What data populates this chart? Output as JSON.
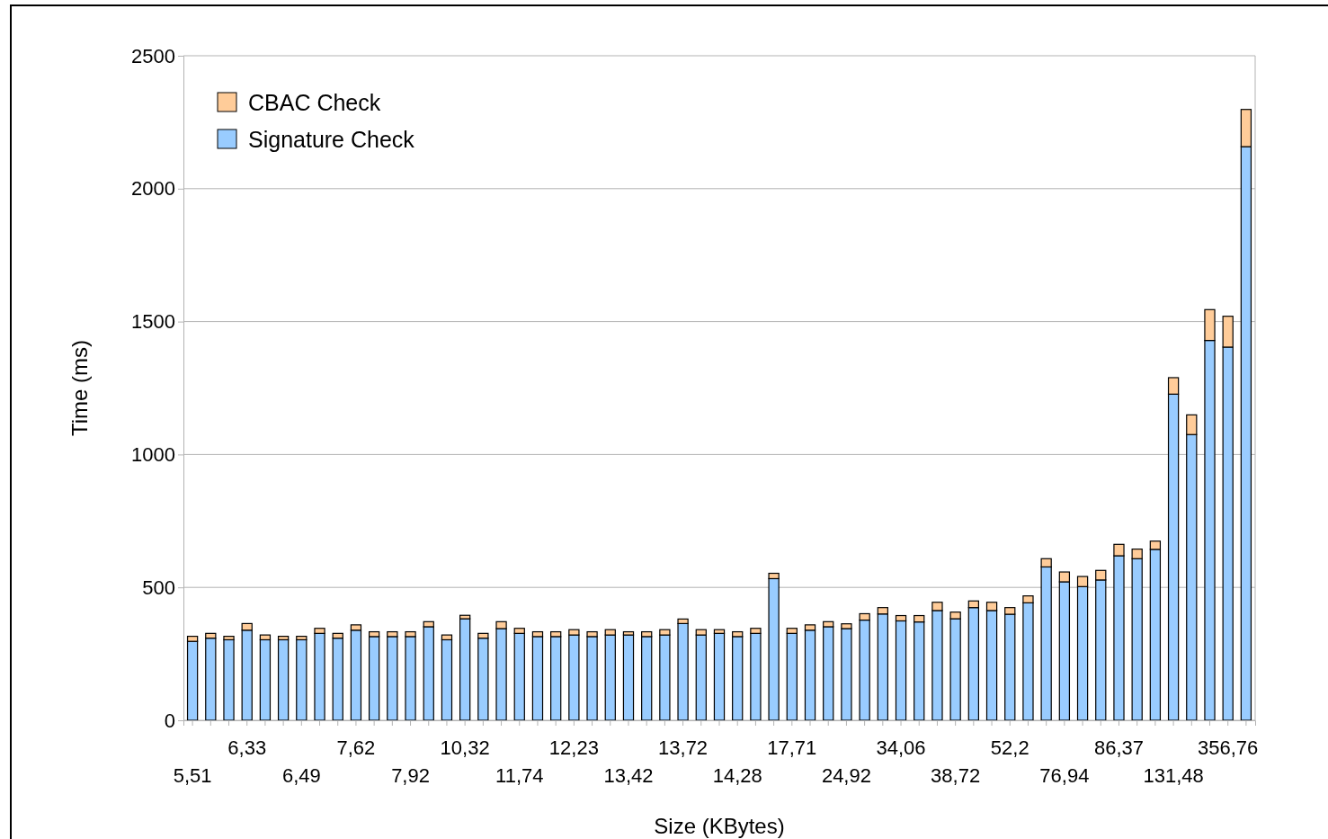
{
  "chart_data": {
    "type": "bar",
    "stacked": true,
    "xlabel": "Size (KBytes)",
    "ylabel": "Time (ms)",
    "categories": [
      "5,51",
      null,
      null,
      "6,33",
      null,
      null,
      "6,49",
      null,
      null,
      "7,62",
      null,
      null,
      "7,92",
      null,
      null,
      "10,32",
      null,
      null,
      "11,74",
      null,
      null,
      "12,23",
      null,
      null,
      "13,42",
      null,
      null,
      "13,72",
      null,
      null,
      "14,28",
      null,
      null,
      "17,71",
      null,
      null,
      "24,92",
      null,
      null,
      "34,06",
      null,
      null,
      "38,72",
      null,
      null,
      "52,2",
      null,
      null,
      "76,94",
      null,
      null,
      "86,37",
      null,
      null,
      "131,48",
      null,
      null,
      "356,76",
      null
    ],
    "series": [
      {
        "name": "Signature Check",
        "color": "#99ccff",
        "values": [
          297,
          309,
          303,
          339,
          303,
          303,
          303,
          327,
          309,
          339,
          315,
          315,
          315,
          352,
          303,
          382,
          309,
          345,
          327,
          315,
          315,
          321,
          315,
          321,
          321,
          315,
          321,
          364,
          321,
          327,
          315,
          327,
          533,
          327,
          339,
          352,
          345,
          377,
          400,
          374,
          370,
          413,
          382,
          424,
          413,
          399,
          442,
          577,
          521,
          503,
          528,
          619,
          608,
          643,
          1227,
          1075,
          1429,
          1404,
          2158
        ]
      },
      {
        "name": "CBAC Check",
        "color": "#ffcc99",
        "values": [
          19,
          18,
          13,
          25,
          18,
          13,
          13,
          19,
          18,
          20,
          18,
          18,
          18,
          19,
          18,
          13,
          18,
          26,
          19,
          18,
          18,
          20,
          18,
          20,
          12,
          18,
          20,
          17,
          20,
          14,
          18,
          19,
          20,
          19,
          20,
          19,
          18,
          24,
          24,
          20,
          24,
          31,
          25,
          25,
          31,
          25,
          26,
          31,
          37,
          38,
          36,
          43,
          36,
          31,
          62,
          74,
          116,
          116,
          140
        ]
      }
    ],
    "ylim": [
      0,
      2500
    ],
    "yticks": [
      0,
      500,
      1000,
      1500,
      2000,
      2500
    ],
    "grid": "y",
    "legend": "top left"
  }
}
